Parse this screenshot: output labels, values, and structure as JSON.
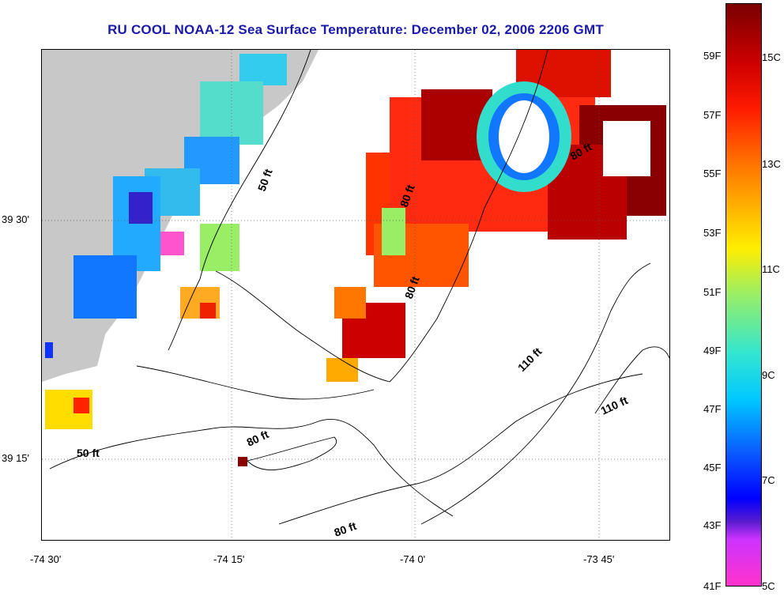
{
  "title": "RU COOL  NOAA-12  Sea Surface Temperature:  December 02, 2006 2206 GMT",
  "axes": {
    "lat_labels": [
      "39 30'",
      "39 15'"
    ],
    "lon_labels": [
      "-74 30'",
      "-74 15'",
      "-74 0'",
      "-73 45'"
    ]
  },
  "depth_labels": [
    "50 ft",
    "50 ft",
    "80 ft",
    "80 ft",
    "80 ft",
    "80 ft",
    "80 ft",
    "110 ft",
    "110 ft"
  ],
  "colorbar": {
    "fahrenheit": [
      "59F",
      "57F",
      "55F",
      "53F",
      "51F",
      "49F",
      "47F",
      "45F",
      "43F",
      "41F"
    ],
    "celsius": [
      "15C",
      "13C",
      "11C",
      "9C",
      "7C",
      "5C"
    ]
  },
  "colors": {
    "title": "#1a1aa8",
    "land": "#c8c8c8",
    "warm": "#cc0000",
    "cool": "#00c8ff"
  }
}
